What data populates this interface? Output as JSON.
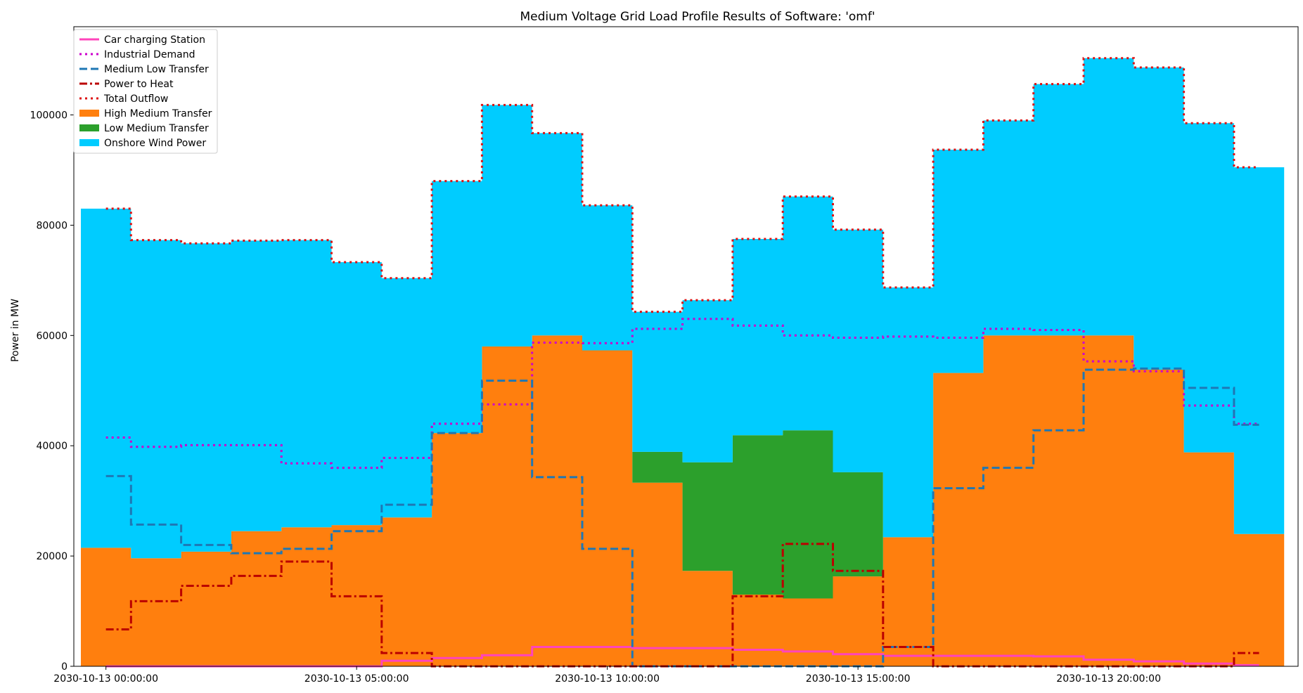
{
  "chart_data": {
    "type": "area",
    "title": "Medium Voltage Grid Load Profile Results of Software: 'omf'",
    "xlabel": "",
    "ylabel": "Power in MW",
    "x": [
      "2030-10-13 00:00:00",
      "2030-10-13 01:00:00",
      "2030-10-13 02:00:00",
      "2030-10-13 03:00:00",
      "2030-10-13 04:00:00",
      "2030-10-13 05:00:00",
      "2030-10-13 06:00:00",
      "2030-10-13 07:00:00",
      "2030-10-13 08:00:00",
      "2030-10-13 09:00:00",
      "2030-10-13 10:00:00",
      "2030-10-13 11:00:00",
      "2030-10-13 12:00:00",
      "2030-10-13 13:00:00",
      "2030-10-13 14:00:00",
      "2030-10-13 15:00:00",
      "2030-10-13 16:00:00",
      "2030-10-13 17:00:00",
      "2030-10-13 18:00:00",
      "2030-10-13 19:00:00",
      "2030-10-13 20:00:00",
      "2030-10-13 21:00:00",
      "2030-10-13 22:00:00",
      "2030-10-13 23:00:00"
    ],
    "x_ticks": [
      "2030-10-13 00:00:00",
      "2030-10-13 05:00:00",
      "2030-10-13 10:00:00",
      "2030-10-13 15:00:00",
      "2030-10-13 20:00:00"
    ],
    "y_ticks": [
      0,
      20000,
      40000,
      60000,
      80000,
      100000
    ],
    "ylim": [
      0,
      116000
    ],
    "legend_position": "upper-left",
    "series": [
      {
        "name": "Car charging Station",
        "kind": "line",
        "color": "#ff44bb",
        "dash": "solid",
        "values": [
          0,
          0,
          0,
          0,
          0,
          0,
          1000,
          1500,
          2000,
          3500,
          3500,
          3300,
          3300,
          3000,
          2700,
          2200,
          1900,
          1900,
          1900,
          1800,
          1200,
          900,
          500,
          200
        ]
      },
      {
        "name": "Industrial Demand",
        "kind": "line",
        "color": "#cc00cc",
        "dash": "dotted",
        "values": [
          41500,
          39800,
          40100,
          40100,
          36800,
          36000,
          37800,
          44000,
          47500,
          58700,
          58600,
          61200,
          63000,
          61800,
          60000,
          59600,
          59800,
          59600,
          61200,
          61000,
          55300,
          53500,
          47300,
          44000
        ]
      },
      {
        "name": "Medium Low Transfer",
        "kind": "line",
        "color": "#1f77b4",
        "dash": "dashed",
        "values": [
          34500,
          25700,
          22000,
          20500,
          21300,
          24500,
          29300,
          42300,
          51800,
          34300,
          21300,
          0,
          0,
          0,
          0,
          0,
          3500,
          32300,
          36000,
          42800,
          53800,
          54000,
          50500,
          43800
        ]
      },
      {
        "name": "Power to Heat",
        "kind": "line",
        "color": "#bb0000",
        "dash": "dashdot",
        "values": [
          6700,
          11800,
          14600,
          16400,
          19000,
          12700,
          2400,
          0,
          0,
          0,
          0,
          0,
          0,
          12700,
          22200,
          17300,
          3500,
          0,
          0,
          0,
          0,
          0,
          0,
          2400
        ]
      },
      {
        "name": "Total Outflow",
        "kind": "line",
        "color": "#dd1111",
        "dash": "dotted",
        "values": [
          83000,
          77300,
          76700,
          77200,
          77300,
          73300,
          70400,
          88000,
          101800,
          96700,
          83600,
          64300,
          66400,
          77500,
          85200,
          79200,
          68700,
          93700,
          99000,
          105600,
          110300,
          108600,
          98500,
          90500
        ]
      },
      {
        "name": "High Medium Transfer",
        "kind": "stack",
        "color": "#ff7f0e",
        "values": [
          21500,
          19600,
          20800,
          24500,
          25200,
          25600,
          27000,
          42300,
          58000,
          60000,
          57300,
          33300,
          17300,
          13000,
          12300,
          16300,
          23400,
          53200,
          60000,
          60000,
          60000,
          53800,
          38800,
          24000
        ]
      },
      {
        "name": "Low Medium Transfer",
        "kind": "stack",
        "color": "#2ca02c",
        "values": [
          0,
          0,
          0,
          0,
          0,
          0,
          0,
          0,
          0,
          0,
          0,
          5600,
          19700,
          28900,
          30500,
          18900,
          0,
          0,
          0,
          0,
          0,
          0,
          0,
          0
        ]
      },
      {
        "name": "Onshore Wind Power",
        "kind": "stack",
        "color": "#00ccff",
        "values": [
          61500,
          57700,
          55900,
          52700,
          52100,
          47700,
          43400,
          45700,
          43800,
          36700,
          26300,
          25400,
          29400,
          35600,
          42400,
          44000,
          45300,
          40500,
          39000,
          45600,
          50300,
          54800,
          59700,
          66500
        ]
      }
    ]
  }
}
